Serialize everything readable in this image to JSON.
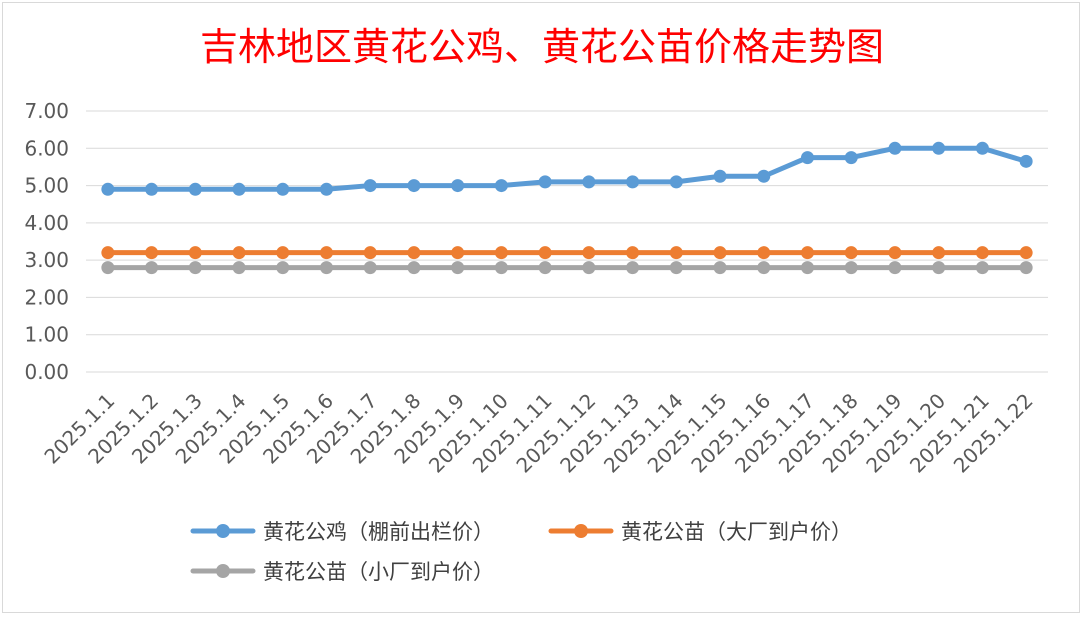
{
  "chart_data": {
    "type": "line",
    "title": "吉林地区黄花公鸡、黄花公苗价格走势图",
    "xlabel": "",
    "ylabel": "",
    "ylim": [
      0,
      7
    ],
    "y_ticks": [
      "0.00",
      "1.00",
      "2.00",
      "3.00",
      "4.00",
      "5.00",
      "6.00",
      "7.00"
    ],
    "grid": true,
    "legend_position": "bottom",
    "x": [
      "2025.1.1",
      "2025.1.2",
      "2025.1.3",
      "2025.1.4",
      "2025.1.5",
      "2025.1.6",
      "2025.1.7",
      "2025.1.8",
      "2025.1.9",
      "2025.1.10",
      "2025.1.11",
      "2025.1.12",
      "2025.1.13",
      "2025.1.14",
      "2025.1.15",
      "2025.1.16",
      "2025.1.17",
      "2025.1.18",
      "2025.1.19",
      "2025.1.20",
      "2025.1.21",
      "2025.1.22"
    ],
    "series": [
      {
        "name": "黄花公鸡（棚前出栏价）",
        "color": "#5b9bd5",
        "values": [
          4.9,
          4.9,
          4.9,
          4.9,
          4.9,
          4.9,
          5.0,
          5.0,
          5.0,
          5.0,
          5.1,
          5.1,
          5.1,
          5.1,
          5.25,
          5.25,
          5.75,
          5.75,
          6.0,
          6.0,
          6.0,
          5.65
        ]
      },
      {
        "name": "黄花公苗（大厂到户价）",
        "color": "#ed7d31",
        "values": [
          3.2,
          3.2,
          3.2,
          3.2,
          3.2,
          3.2,
          3.2,
          3.2,
          3.2,
          3.2,
          3.2,
          3.2,
          3.2,
          3.2,
          3.2,
          3.2,
          3.2,
          3.2,
          3.2,
          3.2,
          3.2,
          3.2
        ]
      },
      {
        "name": "黄花公苗（小厂到户价）",
        "color": "#a5a5a5",
        "values": [
          2.8,
          2.8,
          2.8,
          2.8,
          2.8,
          2.8,
          2.8,
          2.8,
          2.8,
          2.8,
          2.8,
          2.8,
          2.8,
          2.8,
          2.8,
          2.8,
          2.8,
          2.8,
          2.8,
          2.8,
          2.8,
          2.8
        ]
      }
    ]
  }
}
